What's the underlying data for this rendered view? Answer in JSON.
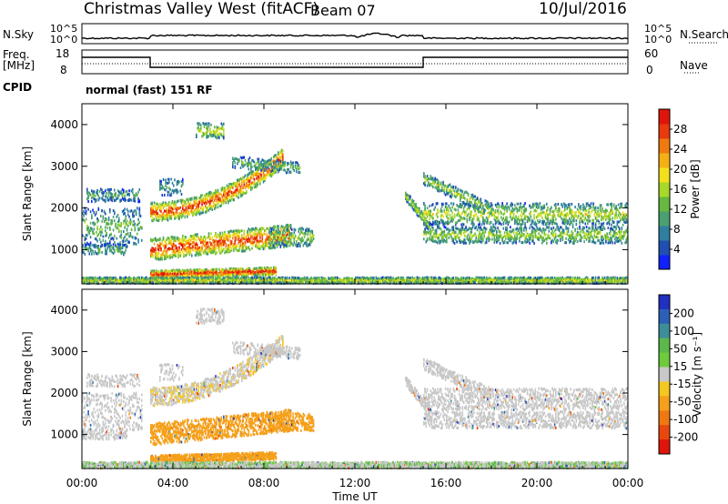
{
  "header": {
    "title": "Christmas Valley West (fitACF)",
    "beam": "Beam 07",
    "date": "10/Jul/2016"
  },
  "strip": {
    "nsky_label": "N.Sky",
    "nsearch_label": "N.Search",
    "freq_label_1": "Freq.",
    "freq_label_2": "[MHz]",
    "nave_label": "Nave",
    "cpid_label": "CPID",
    "cpid_text": "normal (fast) 151 RF",
    "noise_ticks_left": [
      "10^5",
      "10^0"
    ],
    "noise_ticks_right": [
      "10^5",
      "10^0"
    ],
    "freq_ticks": [
      "18",
      "8"
    ],
    "nave_ticks": [
      "60",
      "0"
    ]
  },
  "chart_data": [
    {
      "type": "heatmap",
      "name_panel": "power",
      "ylabel": "Slant Range [km]",
      "xlabel": "",
      "x_ticks": [
        "00:00",
        "04:00",
        "08:00",
        "12:00",
        "16:00",
        "20:00",
        "00:00"
      ],
      "y_ticks": [
        1000,
        2000,
        3000,
        4000
      ],
      "ylim": [
        180,
        4500
      ],
      "xlim_hours": [
        0,
        24
      ],
      "colorbar_label": "Power [dB]",
      "colorbar_ticks": [
        28,
        24,
        20,
        16,
        12,
        8,
        4
      ],
      "colorbar_range": [
        0,
        32
      ],
      "colorbar_colors": [
        "#1020ff",
        "#1f4fb0",
        "#2f7fa0",
        "#4aa070",
        "#66b840",
        "#a8d828",
        "#f2e01c",
        "#f5b016",
        "#f07a10",
        "#e83a0c",
        "#e0140a"
      ]
    },
    {
      "type": "heatmap",
      "name_panel": "velocity",
      "ylabel": "Slant Range [km]",
      "xlabel": "Time UT",
      "x_ticks": [
        "00:00",
        "04:00",
        "08:00",
        "12:00",
        "16:00",
        "20:00",
        "00:00"
      ],
      "y_ticks": [
        1000,
        2000,
        3000,
        4000
      ],
      "ylim": [
        180,
        4500
      ],
      "xlim_hours": [
        0,
        24
      ],
      "colorbar_label": "Velocity [m s⁻¹]",
      "colorbar_ticks": [
        "200",
        "100",
        "50",
        "15",
        "-15",
        "-50",
        "-100",
        "-200"
      ],
      "colorbar_colors": [
        "#2030c0",
        "#2e5fb8",
        "#3c8f9a",
        "#5cb84a",
        "#6ecc3c",
        "#c8c8c8",
        "#f5c820",
        "#f5a01a",
        "#f07812",
        "#e8480e",
        "#e0140a"
      ]
    }
  ]
}
